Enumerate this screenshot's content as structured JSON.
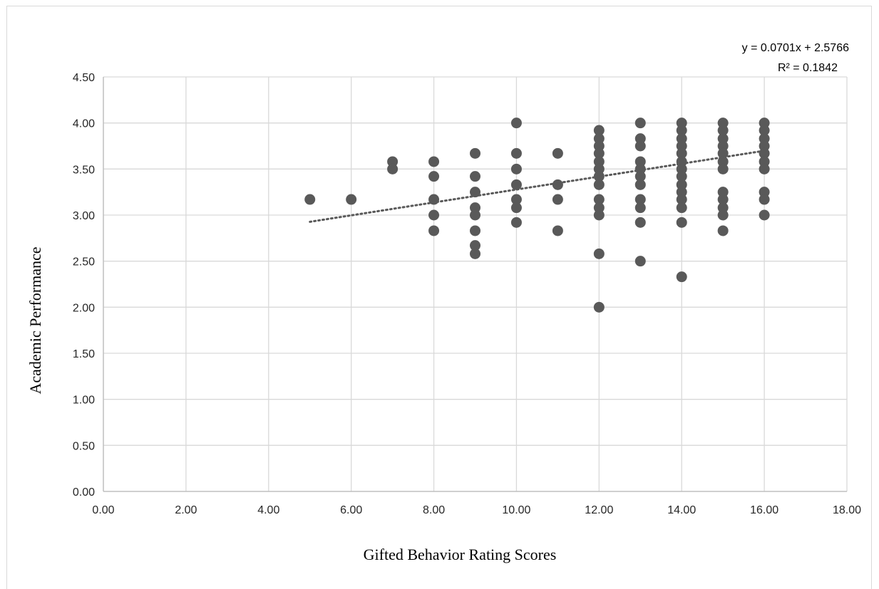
{
  "chart_data": {
    "type": "scatter",
    "title": "",
    "xlabel": "Gifted Behavior Rating Scores",
    "ylabel": "Academic Performance",
    "xlim": [
      0,
      18
    ],
    "ylim": [
      0,
      4.5
    ],
    "x_ticks": [
      "0.00",
      "2.00",
      "4.00",
      "6.00",
      "8.00",
      "10.00",
      "12.00",
      "14.00",
      "16.00",
      "18.00"
    ],
    "y_ticks": [
      "0.00",
      "0.50",
      "1.00",
      "1.50",
      "2.00",
      "2.50",
      "3.00",
      "3.50",
      "4.00",
      "4.50"
    ],
    "grid": true,
    "legend": "none",
    "marker_color": "#595959",
    "trendline": {
      "style": "dotted",
      "slope": 0.0701,
      "intercept": 2.5766,
      "x_range": [
        5,
        16
      ],
      "equation_label": "y = 0.0701x + 2.5766",
      "r2_label": "R² = 0.1842"
    },
    "points": [
      [
        5,
        3.17
      ],
      [
        6,
        3.17
      ],
      [
        7,
        3.58
      ],
      [
        7,
        3.5
      ],
      [
        8,
        3.58
      ],
      [
        8,
        3.42
      ],
      [
        8,
        3.17
      ],
      [
        8,
        3.0
      ],
      [
        8,
        2.83
      ],
      [
        9,
        3.67
      ],
      [
        9,
        3.42
      ],
      [
        9,
        3.25
      ],
      [
        9,
        3.08
      ],
      [
        9,
        3.0
      ],
      [
        9,
        2.83
      ],
      [
        9,
        2.67
      ],
      [
        9,
        2.58
      ],
      [
        10,
        4.0
      ],
      [
        10,
        3.67
      ],
      [
        10,
        3.5
      ],
      [
        10,
        3.33
      ],
      [
        10,
        3.17
      ],
      [
        10,
        3.08
      ],
      [
        10,
        2.92
      ],
      [
        11,
        3.67
      ],
      [
        11,
        3.33
      ],
      [
        11,
        3.17
      ],
      [
        11,
        2.83
      ],
      [
        12,
        3.92
      ],
      [
        12,
        3.83
      ],
      [
        12,
        3.75
      ],
      [
        12,
        3.67
      ],
      [
        12,
        3.58
      ],
      [
        12,
        3.5
      ],
      [
        12,
        3.42
      ],
      [
        12,
        3.33
      ],
      [
        12,
        3.17
      ],
      [
        12,
        3.08
      ],
      [
        12,
        3.0
      ],
      [
        12,
        2.58
      ],
      [
        12,
        2.0
      ],
      [
        13,
        4.0
      ],
      [
        13,
        3.83
      ],
      [
        13,
        3.75
      ],
      [
        13,
        3.58
      ],
      [
        13,
        3.5
      ],
      [
        13,
        3.42
      ],
      [
        13,
        3.33
      ],
      [
        13,
        3.17
      ],
      [
        13,
        3.08
      ],
      [
        13,
        2.92
      ],
      [
        13,
        2.5
      ],
      [
        14,
        4.0
      ],
      [
        14,
        3.92
      ],
      [
        14,
        3.83
      ],
      [
        14,
        3.75
      ],
      [
        14,
        3.67
      ],
      [
        14,
        3.58
      ],
      [
        14,
        3.5
      ],
      [
        14,
        3.42
      ],
      [
        14,
        3.33
      ],
      [
        14,
        3.25
      ],
      [
        14,
        3.17
      ],
      [
        14,
        3.08
      ],
      [
        14,
        2.92
      ],
      [
        14,
        2.33
      ],
      [
        15,
        4.0
      ],
      [
        15,
        3.92
      ],
      [
        15,
        3.83
      ],
      [
        15,
        3.75
      ],
      [
        15,
        3.67
      ],
      [
        15,
        3.58
      ],
      [
        15,
        3.5
      ],
      [
        15,
        3.25
      ],
      [
        15,
        3.17
      ],
      [
        15,
        3.08
      ],
      [
        15,
        3.0
      ],
      [
        15,
        2.83
      ],
      [
        16,
        4.0
      ],
      [
        16,
        3.92
      ],
      [
        16,
        3.83
      ],
      [
        16,
        3.75
      ],
      [
        16,
        3.67
      ],
      [
        16,
        3.58
      ],
      [
        16,
        3.5
      ],
      [
        16,
        3.25
      ],
      [
        16,
        3.17
      ],
      [
        16,
        3.0
      ]
    ]
  }
}
